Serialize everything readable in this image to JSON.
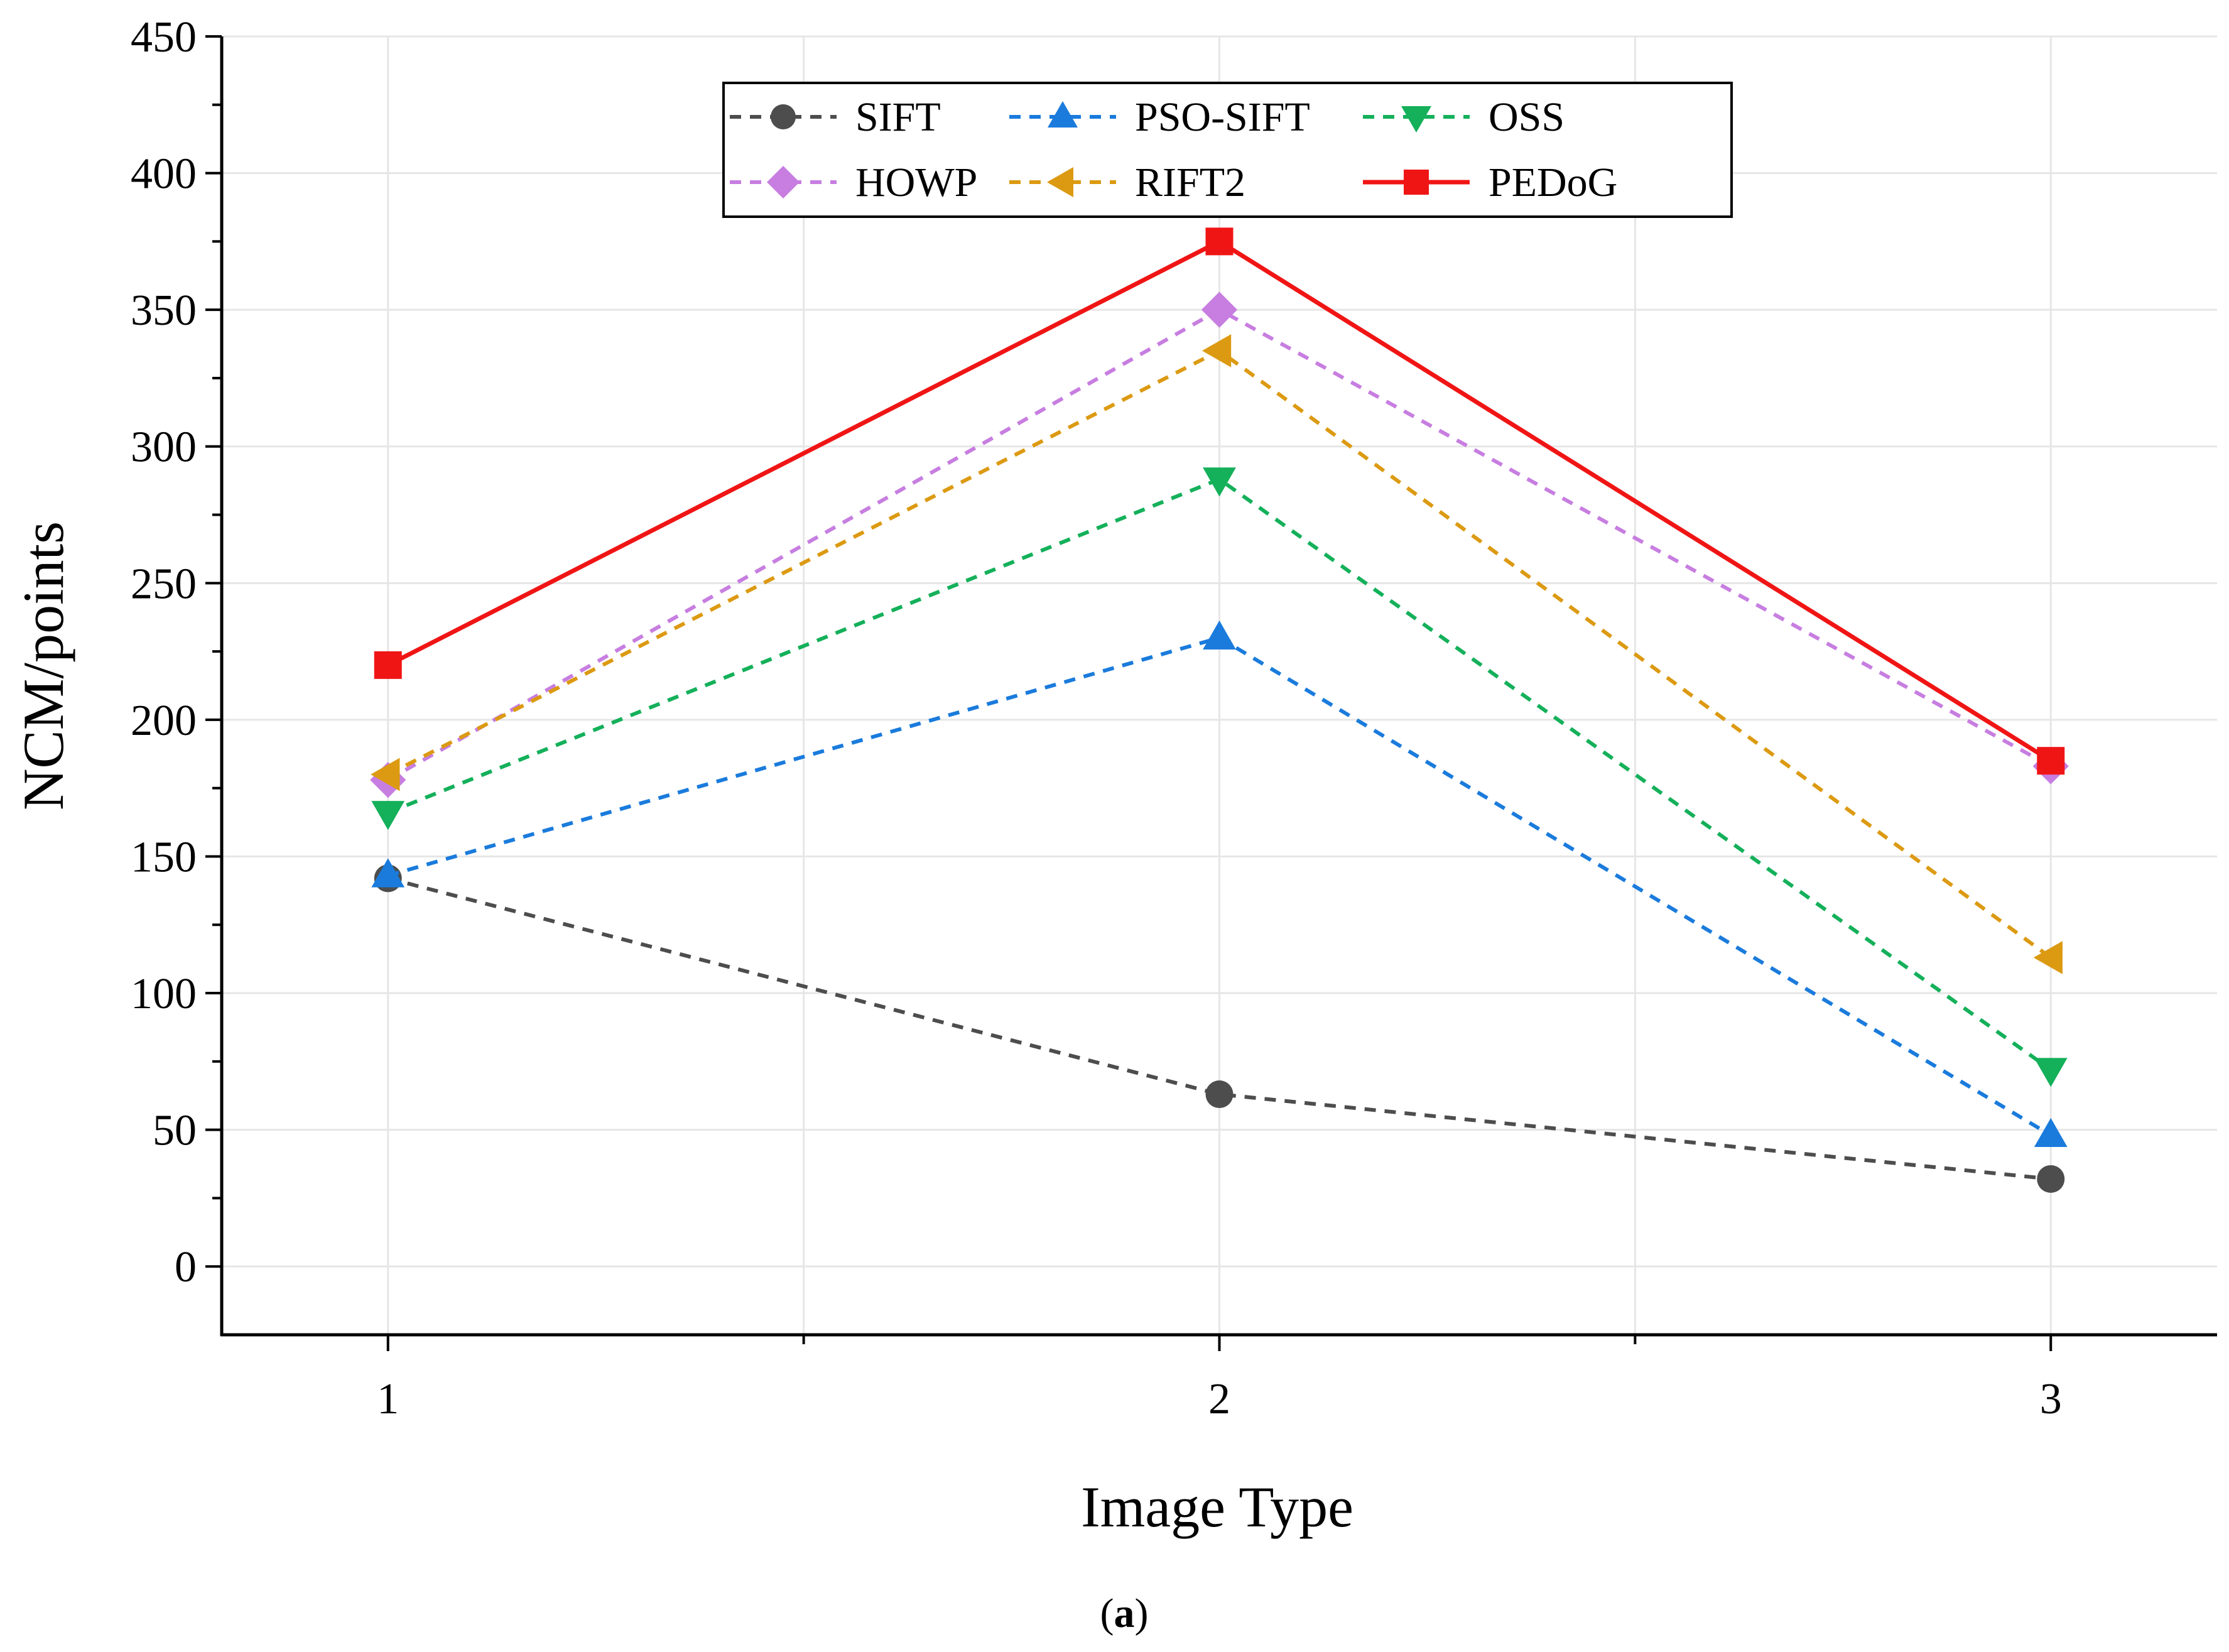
{
  "chart_data": {
    "type": "line",
    "title": "",
    "xlabel": "Image Type",
    "ylabel": "NCM/points",
    "categories": [
      "1",
      "2",
      "3"
    ],
    "x": [
      1,
      2,
      3
    ],
    "xlim": [
      0.8,
      3.2
    ],
    "ylim": [
      -25,
      450
    ],
    "yticks": [
      0,
      50,
      100,
      150,
      200,
      250,
      300,
      350,
      400,
      450
    ],
    "grid": true,
    "legend_position": "top-center",
    "series": [
      {
        "name": "SIFT",
        "values": [
          142,
          63,
          32
        ],
        "color": "#4d4d4d",
        "marker": "circle",
        "line": "dashed"
      },
      {
        "name": "PSO-SIFT",
        "values": [
          143,
          230,
          48
        ],
        "color": "#1a7bdc",
        "marker": "triangle-up",
        "line": "dashed"
      },
      {
        "name": "OSS",
        "values": [
          166,
          288,
          72
        ],
        "color": "#14b05a",
        "marker": "triangle-down",
        "line": "dashed"
      },
      {
        "name": "HOWP",
        "values": [
          178,
          350,
          183
        ],
        "color": "#c77ee0",
        "marker": "diamond",
        "line": "dashed"
      },
      {
        "name": "RIFT2",
        "values": [
          180,
          335,
          113
        ],
        "color": "#dc9a12",
        "marker": "triangle-left",
        "line": "dashed"
      },
      {
        "name": "PEDoG",
        "values": [
          220,
          375,
          185
        ],
        "color": "#f01515",
        "marker": "square",
        "line": "solid"
      }
    ]
  },
  "caption": {
    "open": "(",
    "letter": "a",
    "close": ")"
  }
}
